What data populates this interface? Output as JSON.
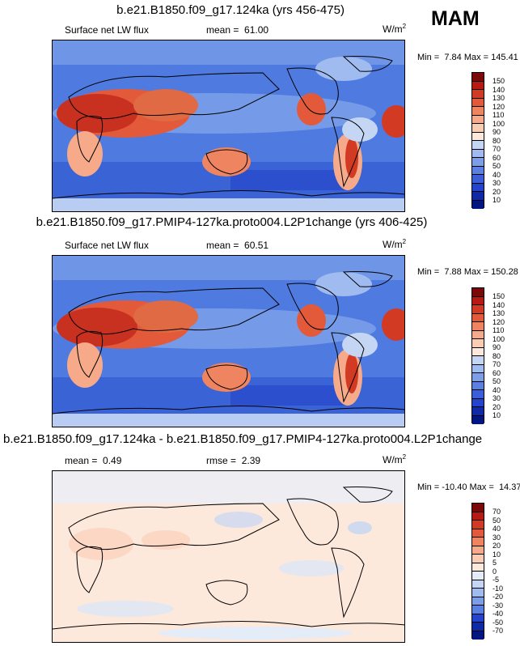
{
  "season": "MAM",
  "panels": [
    {
      "title": "b.e21.B1850.f09_g17.124ka (yrs 456-475)",
      "variable": "Surface net LW flux",
      "stat_label": "mean =",
      "stat_value": "61.00",
      "units": "W/m",
      "units_sup": "2",
      "min_label": "Min =",
      "min": "7.84",
      "max_label": "Max =",
      "max": "145.41",
      "colorbar_ticks": [
        "150",
        "140",
        "130",
        "120",
        "110",
        "100",
        "90",
        "80",
        "70",
        "60",
        "50",
        "40",
        "30",
        "20",
        "10"
      ],
      "colors": [
        "#7a0a0a",
        "#b71a12",
        "#d33a24",
        "#e35a3a",
        "#ef8460",
        "#f6aa8a",
        "#fbccb4",
        "#fde8dc",
        "#e4ecf8",
        "#c4d6f4",
        "#9fbbef",
        "#7c9ee9",
        "#5a80e2",
        "#3a5fd9",
        "#2344cc",
        "#0f2aa8",
        "#031580"
      ]
    },
    {
      "title": "b.e21.B1850.f09_g17.PMIP4-127ka.proto004.L2P1change (yrs 406-425)",
      "variable": "Surface net LW flux",
      "stat_label": "mean =",
      "stat_value": "60.51",
      "units": "W/m",
      "units_sup": "2",
      "min_label": "Min =",
      "min": "7.88",
      "max_label": "Max =",
      "max": "150.28",
      "colorbar_ticks": [
        "150",
        "140",
        "130",
        "120",
        "110",
        "100",
        "90",
        "80",
        "70",
        "60",
        "50",
        "40",
        "30",
        "20",
        "10"
      ],
      "colors": [
        "#7a0a0a",
        "#b71a12",
        "#d33a24",
        "#e35a3a",
        "#ef8460",
        "#f6aa8a",
        "#fbccb4",
        "#fde8dc",
        "#e4ecf8",
        "#c4d6f4",
        "#9fbbef",
        "#7c9ee9",
        "#5a80e2",
        "#3a5fd9",
        "#2344cc",
        "#0f2aa8",
        "#031580"
      ]
    },
    {
      "title": "b.e21.B1850.f09_g17.124ka - b.e21.B1850.f09_g17.PMIP4-127ka.proto004.L2P1change",
      "stat_label": "mean =",
      "stat_value": "0.49",
      "rmse_label": "rmse =",
      "rmse_value": "2.39",
      "units": "W/m",
      "units_sup": "2",
      "min_label": "Min =",
      "min": "-10.40",
      "max_label": "Max =",
      "max": "14.37",
      "colorbar_ticks": [
        "70",
        "50",
        "40",
        "30",
        "20",
        "10",
        "5",
        "0",
        "-5",
        "-10",
        "-20",
        "-30",
        "-40",
        "-50",
        "-70"
      ],
      "colors": [
        "#7a0a0a",
        "#b71a12",
        "#d33a24",
        "#e35a3a",
        "#ef8460",
        "#f6aa8a",
        "#fbccb4",
        "#fde8dc",
        "#e4ecf8",
        "#c4d6f4",
        "#9fbbef",
        "#7c9ee9",
        "#5a80e2",
        "#3a5fd9",
        "#2344cc",
        "#0f2aa8",
        "#031580"
      ]
    }
  ]
}
